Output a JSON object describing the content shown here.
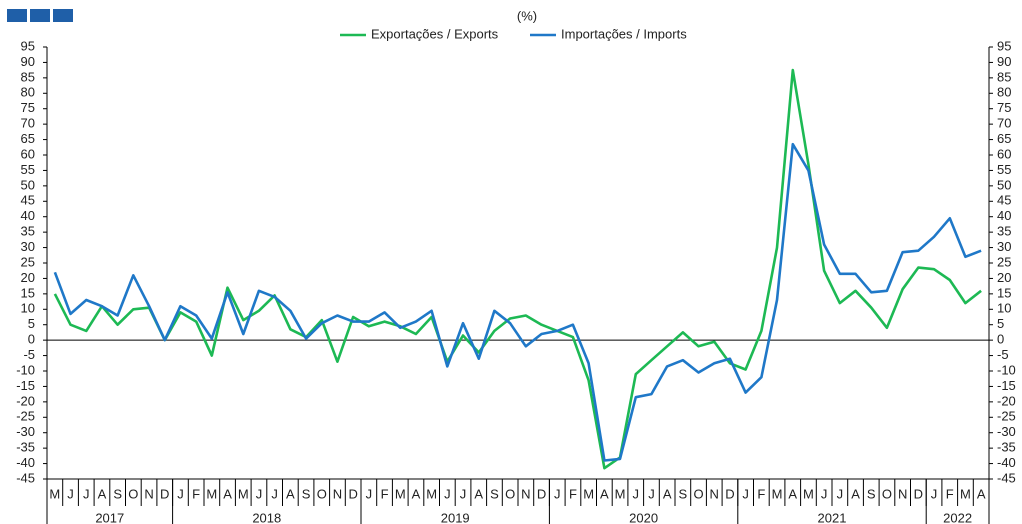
{
  "chart_data": {
    "type": "line",
    "subtitle": "(%)",
    "categories": [
      "M",
      "J",
      "J",
      "A",
      "S",
      "O",
      "N",
      "D",
      "J",
      "F",
      "M",
      "A",
      "M",
      "J",
      "J",
      "A",
      "S",
      "O",
      "N",
      "D",
      "J",
      "F",
      "M",
      "A",
      "M",
      "J",
      "J",
      "A",
      "S",
      "O",
      "N",
      "D",
      "J",
      "F",
      "M",
      "A",
      "M",
      "J",
      "J",
      "A",
      "S",
      "O",
      "N",
      "D",
      "J",
      "F",
      "M",
      "A",
      "M",
      "J",
      "J",
      "A",
      "S",
      "O",
      "N",
      "D",
      "J",
      "F",
      "M",
      "A"
    ],
    "year_groups": [
      {
        "label": "2017",
        "span": 8
      },
      {
        "label": "2018",
        "span": 12
      },
      {
        "label": "2019",
        "span": 12
      },
      {
        "label": "2020",
        "span": 12
      },
      {
        "label": "2021",
        "span": 12
      },
      {
        "label": "2022",
        "span": 4
      }
    ],
    "series": [
      {
        "name": "Exportações / Exports",
        "color": "#1db954",
        "values": [
          15,
          5,
          3,
          11,
          5,
          10,
          10.5,
          0,
          9,
          6,
          -5,
          17,
          6.5,
          9.5,
          14.5,
          3.5,
          1,
          6.5,
          -7,
          7.5,
          4.5,
          6,
          4.5,
          2,
          7.5,
          -7,
          1.5,
          -4,
          3,
          7,
          8,
          5,
          3,
          1,
          -13,
          -41.5,
          -38,
          -11,
          -6.5,
          -2,
          2.5,
          -2,
          -0.5,
          -7.5,
          -9.5,
          3,
          30,
          87.5,
          57,
          22.5,
          12,
          16,
          10.5,
          4,
          16.5,
          23.5,
          23,
          19.5,
          12,
          16
        ]
      },
      {
        "name": "Importações / Imports",
        "color": "#1f78c8",
        "values": [
          22,
          8.5,
          13,
          11,
          8,
          21,
          11,
          0,
          11,
          8,
          0.5,
          15.5,
          2,
          16,
          14,
          9.5,
          0.5,
          5.5,
          8,
          6,
          6,
          9,
          4,
          6,
          9.5,
          -8.5,
          5.5,
          -6,
          9.5,
          5.5,
          -2,
          2,
          3,
          5,
          -7.5,
          -39,
          -38.5,
          -18.5,
          -17.5,
          -8.5,
          -6.5,
          -10.5,
          -7.5,
          -6,
          -17,
          -12,
          13,
          63.5,
          55,
          31,
          21.5,
          21.5,
          15.5,
          16,
          28.5,
          29,
          33.5,
          39.5,
          27,
          29
        ]
      }
    ],
    "ylim": [
      -45,
      95
    ],
    "yticks": [
      -45,
      -40,
      -35,
      -30,
      -25,
      -20,
      -15,
      -10,
      -5,
      0,
      5,
      10,
      15,
      20,
      25,
      30,
      35,
      40,
      45,
      50,
      55,
      60,
      65,
      70,
      75,
      80,
      85,
      90,
      95
    ]
  }
}
